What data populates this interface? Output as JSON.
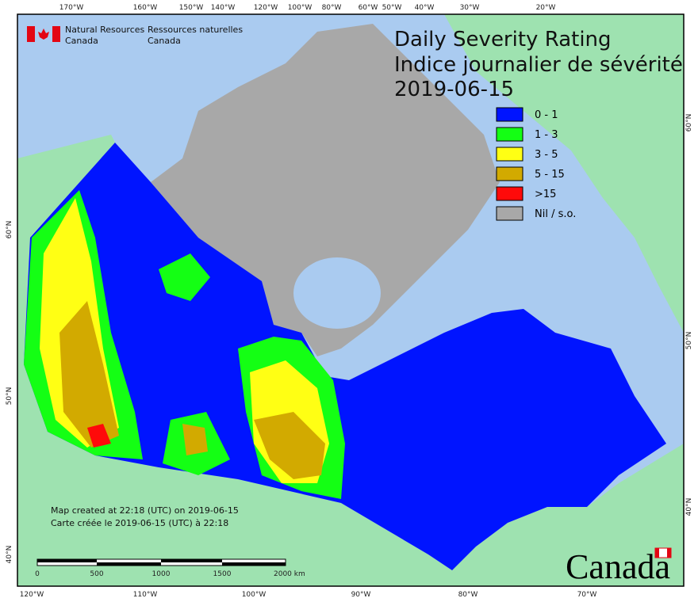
{
  "header": {
    "department_en": [
      "Natural Resources",
      "Canada"
    ],
    "department_fr": [
      "Ressources naturelles",
      "Canada"
    ],
    "title": "Daily Severity Rating",
    "subtitle": "Indice journalier de sévérité",
    "date": "2019-06-15"
  },
  "legend": [
    {
      "label": "0 - 1",
      "color": "#0014ff"
    },
    {
      "label": "1 - 3",
      "color": "#14ff14"
    },
    {
      "label": "3 - 5",
      "color": "#ffff14"
    },
    {
      "label": "5 - 15",
      "color": "#d2aa00"
    },
    {
      "label": ">15",
      "color": "#ff0a0a"
    },
    {
      "label": "Nil / s.o.",
      "color": "#a8a8a8"
    }
  ],
  "graticule": {
    "top": [
      "170°W",
      "160°W",
      "150°W",
      "140°W",
      "120°W",
      "100°W",
      "80°W",
      "60°W",
      "50°W",
      "40°W",
      "30°W",
      "20°W"
    ],
    "bottom": [
      "120°W",
      "110°W",
      "100°W",
      "90°W",
      "80°W",
      "70°W"
    ],
    "left": [
      "60°N",
      "50°N",
      "40°N"
    ],
    "right": [
      "60°N",
      "50°N",
      "40°N"
    ]
  },
  "footer": {
    "created_en": "Map created at 22:18 (UTC) on 2019-06-15",
    "created_fr": "Carte créée le 2019-06-15 (UTC) à 22:18",
    "scale": [
      "0",
      "500",
      "1000",
      "1500",
      "2000 km"
    ],
    "wordmark": "Canada"
  }
}
